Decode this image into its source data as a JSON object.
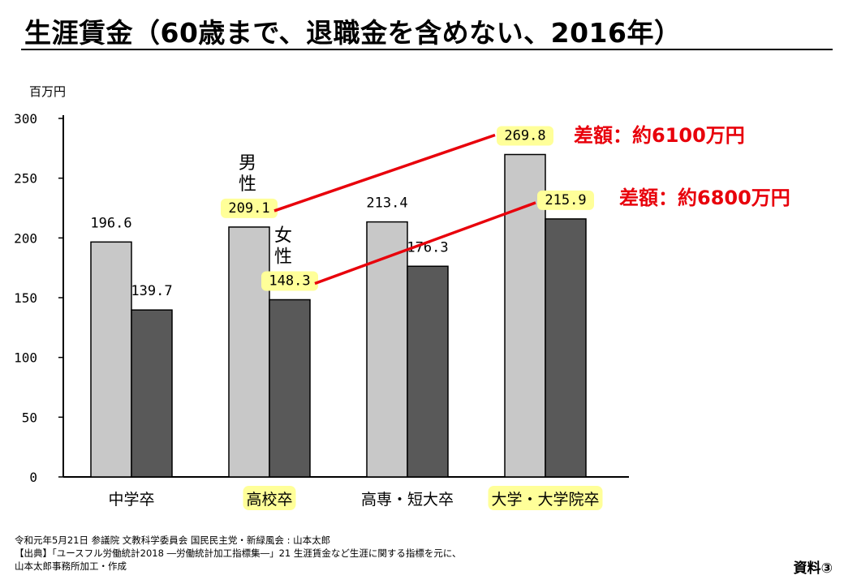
{
  "slide": {
    "title": "生涯賃金（60歳まで、退職金を含めない、2016年）",
    "footer_lines": [
      "令和元年5月21日 参議院 文教科学委員会 国民民主党・新緑風会 : 山本太郎",
      "【出典】「ユースフル労働統計2018 ―労働統計加工指標集―」21 生涯賃金など生涯に関する指標を元に、",
      "山本太郎事務所加工・作成"
    ],
    "doc_label": "資料③"
  },
  "chart_data": {
    "type": "bar",
    "unit_label": "百万円",
    "ylim": [
      0,
      300
    ],
    "yticks": [
      0,
      50,
      100,
      150,
      200,
      250,
      300
    ],
    "grid": false,
    "categories": [
      "中学卒",
      "高校卒",
      "高専・短大卒",
      "大学・大学院卒"
    ],
    "highlighted_categories": [
      "高校卒",
      "大学・大学院卒"
    ],
    "series": [
      {
        "values": [
          196.6,
          209.1,
          213.4,
          269.8
        ],
        "value_labels": [
          "196.6",
          "209.1",
          "213.4",
          "269.8"
        ],
        "color": "#c8c8c8"
      },
      {
        "values": [
          139.7,
          148.3,
          176.3,
          215.9
        ],
        "value_labels": [
          "139.7",
          "148.3",
          "176.3",
          "215.9"
        ],
        "color": "#595959"
      }
    ],
    "series_annotations": [
      "男性",
      "女性"
    ],
    "highlight_color": "#ffff99",
    "annotation_color": "#e8000b",
    "comparisons": [
      {
        "text": "差額：約6100万円",
        "from_label": "209.1",
        "to_label": "269.8"
      },
      {
        "text": "差額：約6800万円",
        "from_label": "148.3",
        "to_label": "215.9"
      }
    ]
  }
}
